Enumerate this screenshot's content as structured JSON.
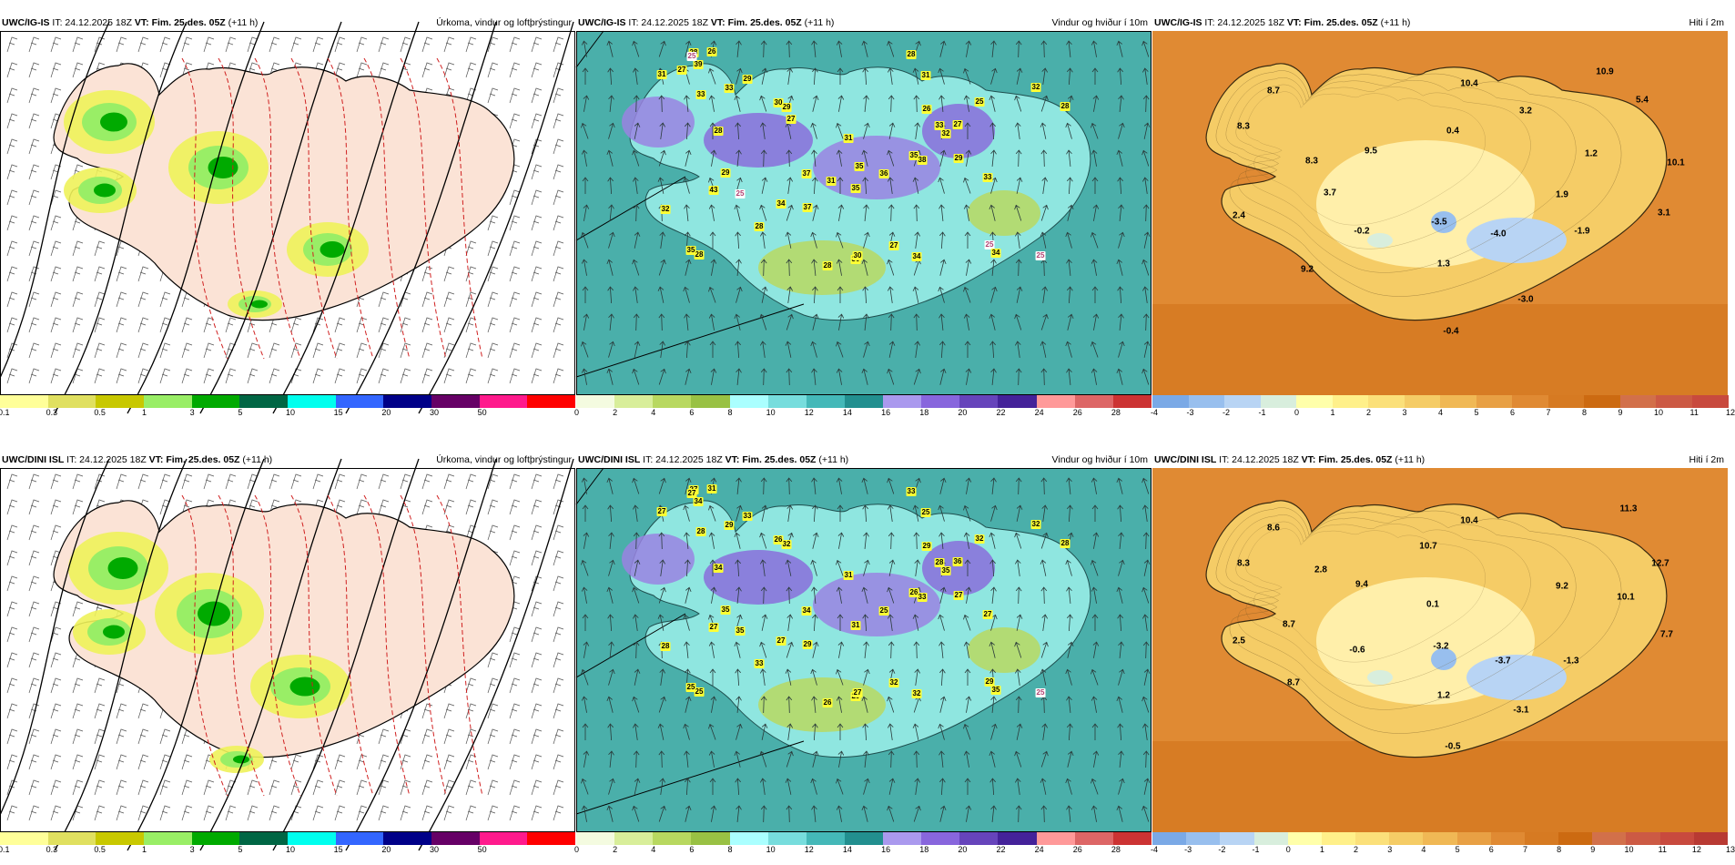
{
  "panels": [
    {
      "id": "p1",
      "row": 0,
      "col": 0,
      "model": "UWC/IG-IS",
      "it_prefix": "IT: 24.12.2025 18Z",
      "vt_label": "VT: Fim. 25.des. 05Z",
      "vt_suffix": "(+11 h)",
      "title": "Úrkoma, vindur og loftþrýstingur"
    },
    {
      "id": "p2",
      "row": 0,
      "col": 1,
      "model": "UWC/IG-IS",
      "it_prefix": "IT: 24.12.2025 18Z",
      "vt_label": "VT: Fim. 25.des. 05Z",
      "vt_suffix": "(+11 h)",
      "title": "Vindur og hviður í 10m"
    },
    {
      "id": "p3",
      "row": 0,
      "col": 2,
      "model": "UWC/IG-IS",
      "it_prefix": "IT: 24.12.2025 18Z",
      "vt_label": "VT: Fim. 25.des. 05Z",
      "vt_suffix": "(+11 h)",
      "title": "Hiti í 2m"
    },
    {
      "id": "p4",
      "row": 1,
      "col": 0,
      "model": "UWC/DINI ISL",
      "it_prefix": "IT: 24.12.2025 18Z",
      "vt_label": "VT: Fim. 25.des. 05Z",
      "vt_suffix": "(+11 h)",
      "title": "Úrkoma, vindur og loftþrýstingur"
    },
    {
      "id": "p5",
      "row": 1,
      "col": 1,
      "model": "UWC/DINI ISL",
      "it_prefix": "IT: 24.12.2025 18Z",
      "vt_label": "VT: Fim. 25.des. 05Z",
      "vt_suffix": "(+11 h)",
      "title": "Vindur og hviður í 10m"
    },
    {
      "id": "p6",
      "row": 1,
      "col": 2,
      "model": "UWC/DINI ISL",
      "it_prefix": "IT: 24.12.2025 18Z",
      "vt_label": "VT: Fim. 25.des. 05Z",
      "vt_suffix": "(+11 h)",
      "title": "Hiti í 2m"
    }
  ],
  "colorbars": {
    "precip": {
      "colors": [
        "#ffff99",
        "#e0e060",
        "#c8c800",
        "#99ee66",
        "#00aa00",
        "#006644",
        "#00ffee",
        "#3366ff",
        "#000088",
        "#660066",
        "#ff1a8c",
        "#ff0000"
      ],
      "ticks": [
        "0.1",
        "0.3",
        "0.5",
        "1",
        "3",
        "5",
        "10",
        "15",
        "20",
        "30",
        "50"
      ]
    },
    "wind": {
      "colors": [
        "#f4fbe0",
        "#d8ee9a",
        "#b8d860",
        "#99c144",
        "#aaffff",
        "#77dddd",
        "#44b8b8",
        "#228f8f",
        "#aa99ee",
        "#8866dd",
        "#6644bb",
        "#442299",
        "#ff9999",
        "#dd6666",
        "#cc3333"
      ],
      "ticks": [
        "0",
        "2",
        "4",
        "6",
        "8",
        "10",
        "12",
        "14",
        "16",
        "18",
        "20",
        "22",
        "24",
        "26",
        "28"
      ]
    },
    "temp_top": {
      "colors": [
        "#7aa9e6",
        "#98bfee",
        "#b8d4f4",
        "#d8eedd",
        "#ffffaa",
        "#fff08a",
        "#fbe07a",
        "#f5cc66",
        "#f0b855",
        "#e8a044",
        "#e08a33",
        "#d67a22",
        "#cc6a11",
        "#d2704a",
        "#cc5a44",
        "#c84a3e"
      ],
      "ticks": [
        "-4",
        "-3",
        "-2",
        "-1",
        "0",
        "1",
        "2",
        "3",
        "4",
        "5",
        "6",
        "7",
        "8",
        "9",
        "10",
        "11",
        "12"
      ]
    },
    "temp_bottom": {
      "colors": [
        "#7aa9e6",
        "#98bfee",
        "#b8d4f4",
        "#d8eedd",
        "#ffffaa",
        "#fff08a",
        "#fbe07a",
        "#f5cc66",
        "#f0b855",
        "#e8a044",
        "#e08a33",
        "#d67a22",
        "#cc6a11",
        "#d2704a",
        "#cc5a44",
        "#c84a3e",
        "#b83a33"
      ],
      "ticks": [
        "-4",
        "-3",
        "-2",
        "-1",
        "0",
        "1",
        "2",
        "3",
        "4",
        "5",
        "6",
        "7",
        "8",
        "9",
        "10",
        "11",
        "12",
        "13"
      ]
    }
  },
  "temp_labels_top": [
    "8.7",
    "8.3",
    "10.4",
    "10.9",
    "5.4",
    "3.2",
    "0.4",
    "9.5",
    "8.3",
    "1.2",
    "10.1",
    "1.9",
    "3.7",
    "2.4",
    "-0.2",
    "-3.5",
    "-4.0",
    "-1.9",
    "3.1",
    "1.3",
    "9.2",
    "-3.0",
    "-0.4"
  ],
  "temp_labels_bottom": [
    "8.6",
    "8.3",
    "2.8",
    "10.4",
    "11.3",
    "10.7",
    "12.7",
    "9.4",
    "9.2",
    "10.1",
    "0.1",
    "8.7",
    "2.5",
    "-0.6",
    "-3.2",
    "-3.7",
    "-1.3",
    "7.7",
    "8.7",
    "1.2",
    "-3.1",
    "-0.5"
  ],
  "gust_labels_top": [
    "25",
    "37",
    "36",
    "25",
    "27",
    "43",
    "33",
    "28",
    "28",
    "25",
    "32",
    "37",
    "35",
    "32",
    "29",
    "28",
    "28",
    "33",
    "39",
    "38",
    "25",
    "34",
    "31",
    "26",
    "28",
    "30",
    "28",
    "32",
    "27",
    "30",
    "28",
    "33",
    "29",
    "29",
    "29",
    "31",
    "33",
    "34",
    "35",
    "30",
    "34",
    "35",
    "25",
    "31",
    "26",
    "27",
    "35",
    "27",
    "31"
  ],
  "gust_labels_bottom": [
    "25",
    "29",
    "25",
    "35",
    "32",
    "27",
    "28",
    "25",
    "33",
    "29",
    "28",
    "34",
    "26",
    "35",
    "27",
    "26",
    "27",
    "28",
    "34",
    "33",
    "32",
    "35",
    "25",
    "31",
    "28",
    "29",
    "33",
    "32",
    "36",
    "27",
    "34",
    "27",
    "35",
    "33",
    "32",
    "31",
    "29",
    "32",
    "31",
    "26",
    "27",
    "25",
    "27",
    "27",
    "29"
  ]
}
